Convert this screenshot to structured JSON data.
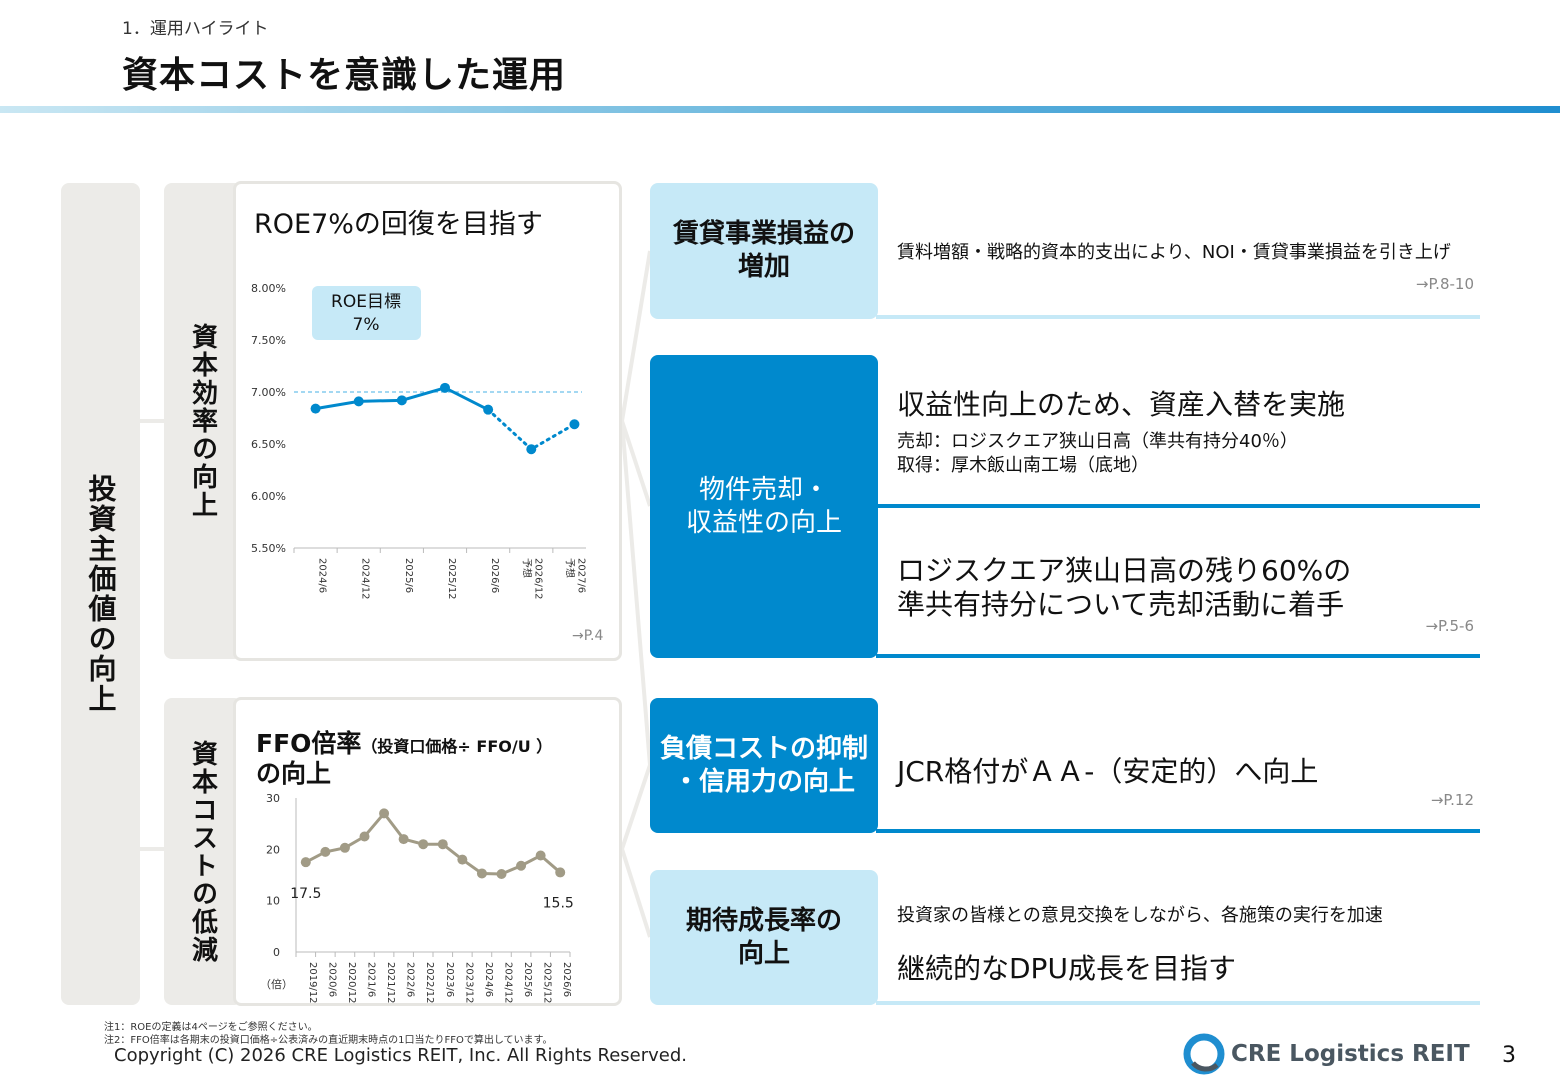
{
  "header": {
    "section": "1．運用ハイライト",
    "title": "資本コストを意識した運用"
  },
  "left": {
    "outer_label": "投資主価値の向上",
    "sub1_label": "資本効率の向上",
    "sub2_label": "資本コストの低減"
  },
  "roe_panel": {
    "title": "ROE7%の回復を目指す",
    "target_badge_line1": "ROE目標",
    "target_badge_line2": "7%",
    "page_ref": "→P.4"
  },
  "ffo_panel": {
    "title_main": "FFO倍率",
    "title_sub": "（投資口価格÷ FFO/U ）",
    "title_line2": "の向上",
    "unit_label": "（倍）"
  },
  "chart_data": [
    {
      "type": "line",
      "title": "",
      "categories": [
        "2024/6",
        "2024/12",
        "2025/6",
        "2025/12",
        "2026/6",
        "2026/12\n予想",
        "2027/6\n予想"
      ],
      "series": [
        {
          "values": [
            6.84,
            6.91,
            6.92,
            7.04,
            6.83,
            6.45,
            6.69
          ]
        }
      ],
      "forecast_from_index": 4,
      "target_line": 7.0,
      "y_ticks": [
        "8.00%",
        "7.50%",
        "7.00%",
        "6.50%",
        "6.00%",
        "5.50%"
      ],
      "ylim": [
        5.5,
        8.0
      ],
      "color": "#0089cd"
    },
    {
      "type": "line",
      "title": "",
      "categories": [
        "2019/12",
        "2020/6",
        "2020/12",
        "2021/6",
        "2021/12",
        "2022/6",
        "2022/12",
        "2023/6",
        "2023/12",
        "2024/6",
        "2024/12",
        "2025/6",
        "2025/12",
        "2026/6"
      ],
      "series": [
        {
          "values": [
            17.5,
            19.5,
            20.3,
            22.5,
            27.0,
            22.0,
            21.0,
            21.0,
            18.0,
            15.3,
            15.2,
            16.8,
            18.8,
            15.5
          ]
        }
      ],
      "data_labels": {
        "first": "17.5",
        "last": "15.5"
      },
      "y_ticks": [
        "30",
        "20",
        "10",
        "0"
      ],
      "ylim": [
        0,
        30
      ],
      "color": "#a19b86"
    }
  ],
  "right": {
    "box1": {
      "label_line1": "賃貸事業損益の",
      "label_line2": "増加",
      "desc": "賃料増額・戦略的資本的支出により、NOI・賃貸事業損益を引き上げ",
      "page_ref": "→P.8-10"
    },
    "box2": {
      "label_line1": "物件売却・",
      "label_line2": "収益性の向上",
      "head1": "収益性向上のため、資産入替を実施",
      "detail1": "売却：ロジスクエア狭山日高（準共有持分40％）",
      "detail2": "取得：厚木飯山南工場（底地）",
      "head2_line1": "ロジスクエア狭山日高の残り60%の",
      "head2_line2": "準共有持分について売却活動に着手",
      "page_ref": "→P.5-6"
    },
    "box3": {
      "label_line1": "負債コストの抑制",
      "label_line2": "・信用力の向上",
      "desc": "JCR格付がＡＡ-（安定的）へ向上",
      "page_ref": "→P.12"
    },
    "box4": {
      "label_line1": "期待成長率の",
      "label_line2": "向上",
      "desc_small": "投資家の皆様との意見交換をしながら、各施策の実行を加速",
      "desc_large": "継続的なDPU成長を目指す"
    }
  },
  "footer": {
    "note1": "注1：ROEの定義は4ページをご参照ください。",
    "note2": "注2：FFO倍率は各期末の投資口価格÷公表済みの直近期末時点の1口当たりFFOで算出しています。",
    "copyright": "Copyright (C) 2026 CRE Logistics REIT, Inc. All Rights Reserved.",
    "logo_text": "CRE Logistics REIT",
    "page_number": "3"
  },
  "colors": {
    "accent_dark": "#0089cd",
    "accent_light": "#c6e9f7",
    "grey_block": "#ecebe8",
    "ffo_line": "#a19b86"
  }
}
